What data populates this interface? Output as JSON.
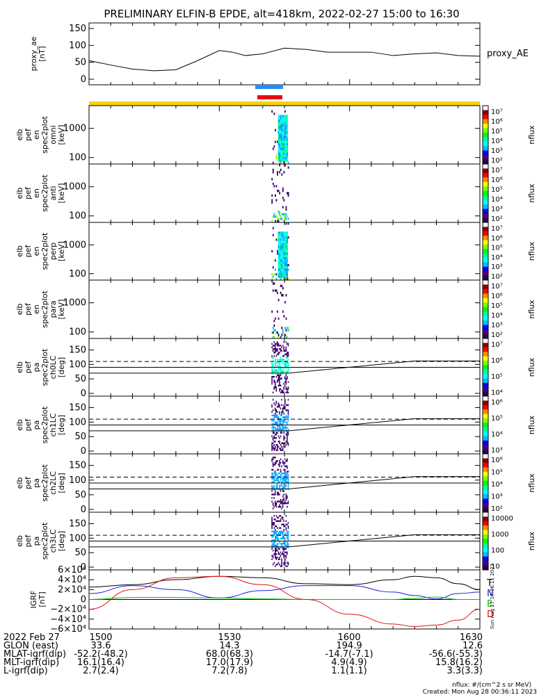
{
  "title": "PRELIMINARY ELFIN-B EPDE, alt=418km, 2022-02-27 15:00 to 16:30",
  "colors": {
    "bar_top": "#1e90ff",
    "bar_bottom": "#e01010",
    "strip": "#f5d20a",
    "grf_T": "#000000",
    "grf_N": "#1c1cd8",
    "grf_E": "#00c000",
    "grf_D": "#e01010"
  },
  "panels": [
    {
      "id": "proxy_ae",
      "ylabel": [
        "proxy_ae",
        "[nT]"
      ],
      "right_label": "proxy_AE",
      "yticks": [
        "150",
        "100",
        "50",
        "0"
      ]
    },
    {
      "id": "en_omni",
      "ylabel": [
        "elb",
        "pef",
        "en",
        "spec2plot",
        "omni",
        "[keV]"
      ],
      "yticks": [
        "1000",
        "100"
      ],
      "colorbar": {
        "labels": [
          "10⁷",
          "10⁶",
          "10⁵",
          "10⁴",
          "10³",
          "10²"
        ],
        "unit": "nflux"
      }
    },
    {
      "id": "en_anti",
      "ylabel": [
        "elb",
        "pef",
        "en",
        "spec2plot",
        "anti",
        "[keV]"
      ],
      "yticks": [
        "1000",
        "100"
      ],
      "colorbar": {
        "labels": [
          "10⁷",
          "10⁶",
          "10⁵",
          "10⁴",
          "10³",
          "10²"
        ],
        "unit": "nflux"
      }
    },
    {
      "id": "en_perp",
      "ylabel": [
        "elb",
        "pef",
        "en",
        "spec2plot",
        "perp",
        "[keV]"
      ],
      "yticks": [
        "1000",
        "100"
      ],
      "colorbar": {
        "labels": [
          "10⁷",
          "10⁶",
          "10⁵",
          "10⁴",
          "10³",
          "10²"
        ],
        "unit": "nflux"
      }
    },
    {
      "id": "en_para",
      "ylabel": [
        "elb",
        "pef",
        "en",
        "spec2plot",
        "para",
        "[keV]"
      ],
      "yticks": [
        "1000",
        "100"
      ],
      "colorbar": {
        "labels": [
          "10⁷",
          "10⁶",
          "10⁵",
          "10⁴",
          "10³",
          "10²"
        ],
        "unit": "nflux"
      }
    },
    {
      "id": "pa_ch0",
      "ylabel": [
        "elb",
        "pef",
        "pa",
        "spec2plot",
        "ch0LC",
        "[deg]"
      ],
      "yticks": [
        "150",
        "100",
        "50",
        "0"
      ],
      "colorbar": {
        "labels": [
          "10⁷",
          "10⁶",
          "10⁵",
          "10⁴"
        ],
        "unit": "nflux"
      }
    },
    {
      "id": "pa_ch1",
      "ylabel": [
        "elb",
        "pef",
        "pa",
        "spec2plot",
        "ch1LC",
        "[deg]"
      ],
      "yticks": [
        "150",
        "100",
        "50",
        "0"
      ],
      "colorbar": {
        "labels": [
          "10⁶",
          "10⁵",
          "10⁴",
          "10³"
        ],
        "unit": "nflux"
      }
    },
    {
      "id": "pa_ch2",
      "ylabel": [
        "elb",
        "pef",
        "pa",
        "spec2plot",
        "ch2LC",
        "[deg]"
      ],
      "yticks": [
        "150",
        "100",
        "50",
        "0"
      ],
      "colorbar": {
        "labels": [
          "10⁶",
          "10⁵",
          "10⁴",
          "10³",
          "10²"
        ],
        "unit": "nflux"
      }
    },
    {
      "id": "pa_ch3",
      "ylabel": [
        "elb",
        "pef",
        "pa",
        "spec2plot",
        "ch3LC",
        "[deg]"
      ],
      "yticks": [
        "150",
        "100",
        "50",
        "0"
      ],
      "colorbar": {
        "labels": [
          "10000",
          "1000",
          "100",
          "10"
        ],
        "unit": "nflux"
      }
    },
    {
      "id": "grf",
      "ylabel": [
        "IGRF",
        "[nT]"
      ],
      "yticks": [
        "6×10⁴",
        "4×10⁴",
        "2×10⁴",
        "0",
        "−2×10⁴",
        "−4×10⁴",
        "−6×10⁴"
      ],
      "legend": [
        "T",
        "N",
        "E",
        "D"
      ]
    }
  ],
  "chart_data": {
    "type": "line",
    "x_unit": "UT (hhmm)",
    "x_range": [
      "1500",
      "1630"
    ],
    "proxy_ae": {
      "name": "proxy_AE",
      "ylim": [
        0,
        150
      ],
      "x_min": [
        0,
        5,
        10,
        15,
        20,
        25,
        30,
        33,
        36,
        40,
        45,
        50,
        55,
        60,
        65,
        70,
        75,
        80,
        85,
        90
      ],
      "values": [
        55,
        42,
        30,
        25,
        28,
        55,
        85,
        80,
        70,
        75,
        92,
        88,
        80,
        80,
        80,
        70,
        75,
        78,
        70,
        68
      ]
    },
    "energy_spectra": {
      "ylim_keV": [
        60,
        6000
      ],
      "yscale": "log",
      "time_window_min": [
        42,
        46
      ]
    },
    "pitch_angle": {
      "ylim_deg": [
        0,
        180
      ],
      "dashed_line_deg": 110,
      "solid_lines_deg": [
        90,
        70
      ],
      "time_window_min": [
        42,
        46
      ]
    },
    "igrf": {
      "ylim": [
        -60000,
        60000
      ],
      "series": [
        {
          "name": "T",
          "x_min": [
            0,
            10,
            20,
            30,
            40,
            50,
            60,
            70,
            75,
            80,
            85,
            90
          ],
          "values": [
            25000,
            30000,
            40000,
            47000,
            44000,
            32000,
            30000,
            40000,
            47000,
            44000,
            32000,
            20000
          ]
        },
        {
          "name": "N",
          "x_min": [
            0,
            10,
            20,
            30,
            40,
            50,
            60,
            70,
            75,
            80,
            85,
            90
          ],
          "values": [
            12000,
            28000,
            20000,
            3000,
            18000,
            28000,
            28000,
            15000,
            8000,
            1000,
            12000,
            15000
          ]
        },
        {
          "name": "E",
          "x_min": [
            0,
            10,
            20,
            30,
            40,
            50,
            60,
            70,
            75,
            80,
            85,
            90
          ],
          "values": [
            0,
            4000,
            4000,
            3000,
            1000,
            0,
            0,
            0,
            2000,
            5000,
            0,
            0
          ]
        },
        {
          "name": "D",
          "x_min": [
            0,
            10,
            20,
            30,
            40,
            50,
            60,
            70,
            75,
            80,
            85,
            90
          ],
          "values": [
            -20000,
            20000,
            44000,
            47000,
            30000,
            0,
            -30000,
            -50000,
            -55000,
            -52000,
            -42000,
            -20000
          ]
        }
      ]
    }
  },
  "footer": {
    "rows": [
      {
        "label": "2022 Feb 27",
        "values": [
          "1500",
          "1530",
          "1600",
          "1630"
        ]
      },
      {
        "label": "GLON (east)",
        "values": [
          "33.6",
          "14.3",
          "194.9",
          "12.6"
        ]
      },
      {
        "label": "MLAT-igrf(dip)",
        "values": [
          "-52.2(-48.2)",
          "68.0(68.3)",
          "-14.7(-7.1)",
          "-56.6(-55.3)"
        ]
      },
      {
        "label": "MLT-igrf(dip)",
        "values": [
          "16.1(16.4)",
          "17.0(17.9)",
          "4.9(4.9)",
          "15.8(16.2)"
        ]
      },
      {
        "label": "L-igrf(dip)",
        "values": [
          "2.7(2.4)",
          "7.2(7.8)",
          "1.1(1.1)",
          "3.3(3.3)"
        ]
      }
    ],
    "units_note": "nflux: #/(cm^2 s sr MeV)",
    "created": "Created: Mon Aug 28 00:36:11 2023",
    "side_stamp": "Sun Aug 27 17:36:11 2023"
  }
}
